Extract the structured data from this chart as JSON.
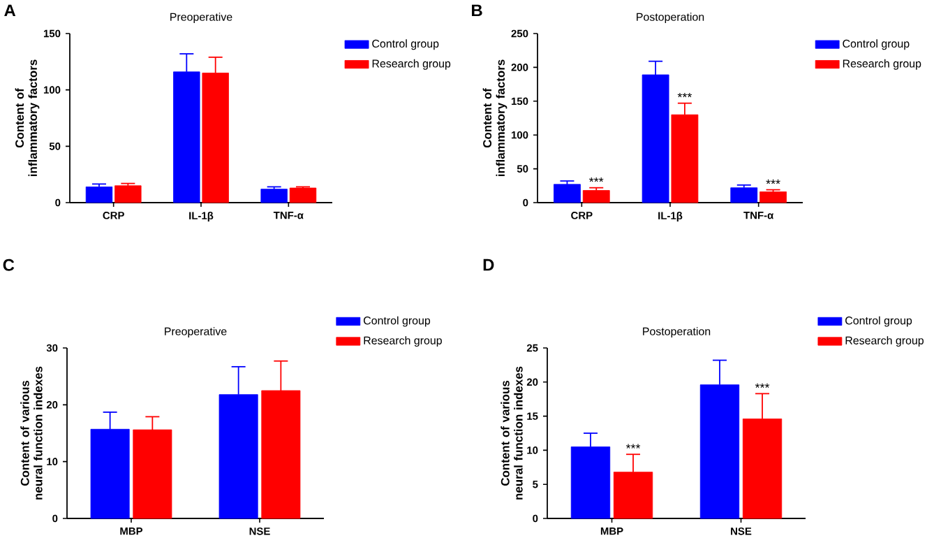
{
  "chart_data": [
    {
      "type": "bar",
      "title": "Preoperative",
      "ylabel": "Content of inflammatory factors",
      "categories": [
        "CRP",
        "IL-1β",
        "TNF-α"
      ],
      "ylim": [
        0,
        150
      ],
      "yticks": [
        0,
        50,
        100,
        150
      ],
      "legend": "right",
      "annotations": [
        "A"
      ],
      "series": [
        {
          "name": "Control group",
          "color": "#0000ff",
          "values": [
            14,
            116,
            12
          ],
          "errors": [
            [
              14,
              16.5
            ],
            [
              116,
              132
            ],
            [
              12,
              14
            ]
          ]
        },
        {
          "name": "Research group",
          "color": "#ff0000",
          "values": [
            15,
            115,
            13
          ],
          "errors": [
            [
              15,
              17
            ],
            [
              115,
              129
            ],
            [
              13,
              14
            ]
          ]
        }
      ]
    },
    {
      "type": "bar",
      "title": "Postoperation",
      "ylabel": "Content of inflammatory factors",
      "categories": [
        "CRP",
        "IL-1β",
        "TNF-α"
      ],
      "ylim": [
        0,
        250
      ],
      "yticks": [
        0,
        50,
        100,
        150,
        200,
        250
      ],
      "legend": "right",
      "annotations": [
        "B",
        {
          "text": "***",
          "x": "CRP",
          "y": 22
        },
        {
          "text": "***",
          "x": "IL-1β",
          "y": 147
        },
        {
          "text": "***",
          "x": "TNF-α",
          "y": 19
        }
      ],
      "series": [
        {
          "name": "Control group",
          "color": "#0000ff",
          "values": [
            27,
            189,
            22
          ],
          "errors": [
            [
              27,
              32
            ],
            [
              189,
              209
            ],
            [
              22,
              26
            ]
          ]
        },
        {
          "name": "Research group",
          "color": "#ff0000",
          "values": [
            18,
            130,
            16
          ],
          "errors": [
            [
              18,
              22
            ],
            [
              130,
              147
            ],
            [
              16,
              19
            ]
          ]
        }
      ]
    },
    {
      "type": "bar",
      "title": "Preoperative",
      "ylabel": "Content of various neural function indexes",
      "categories": [
        "MBP",
        "NSE"
      ],
      "ylim": [
        0,
        30
      ],
      "yticks": [
        0,
        10,
        20,
        30
      ],
      "legend": "top right",
      "annotations": [
        "C"
      ],
      "series": [
        {
          "name": "Control group",
          "color": "#0000ff",
          "values": [
            15.7,
            21.8
          ],
          "errors": [
            [
              15.7,
              18.7
            ],
            [
              21.8,
              26.7
            ]
          ]
        },
        {
          "name": "Research group",
          "color": "#ff0000",
          "values": [
            15.6,
            22.5
          ],
          "errors": [
            [
              15.6,
              17.9
            ],
            [
              22.5,
              27.7
            ]
          ]
        }
      ]
    },
    {
      "type": "bar",
      "title": "Postoperation",
      "ylabel": "Content of various neural function indexes",
      "categories": [
        "MBP",
        "NSE"
      ],
      "ylim": [
        0,
        25
      ],
      "yticks": [
        0,
        5,
        10,
        15,
        20,
        25
      ],
      "legend": "top right",
      "annotations": [
        "D",
        {
          "text": "***",
          "x": "MBP",
          "y": 9.4
        },
        {
          "text": "***",
          "x": "NSE",
          "y": 18.3
        }
      ],
      "series": [
        {
          "name": "Control group",
          "color": "#0000ff",
          "values": [
            10.5,
            19.6
          ],
          "errors": [
            [
              10.5,
              12.5
            ],
            [
              19.6,
              23.2
            ]
          ]
        },
        {
          "name": "Research group",
          "color": "#ff0000",
          "values": [
            6.8,
            14.6
          ],
          "errors": [
            [
              6.8,
              9.4
            ],
            [
              14.6,
              18.3
            ]
          ]
        }
      ]
    }
  ]
}
